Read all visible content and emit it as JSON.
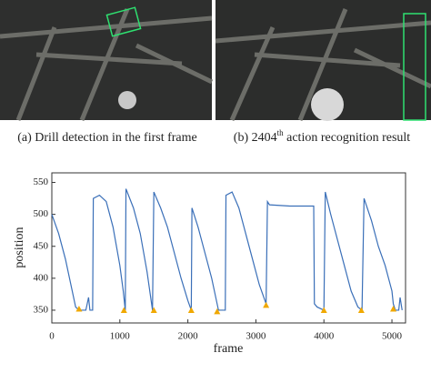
{
  "captions": {
    "a": "(a) Drill detection in the first frame",
    "b_prefix": "(b) 2404",
    "b_sup": "th",
    "b_rest": " action recognition result"
  },
  "chart_data": {
    "type": "line",
    "xlabel": "frame",
    "ylabel": "position",
    "xlim": [
      0,
      5200
    ],
    "ylim": [
      330,
      565
    ],
    "xticks": [
      0,
      1000,
      2000,
      3000,
      4000,
      5000
    ],
    "yticks": [
      350,
      400,
      450,
      500,
      550
    ],
    "series": [
      {
        "color": "#3a6fb8",
        "x": [
          0,
          100,
          200,
          300,
          350,
          400,
          450,
          500,
          540,
          560,
          600,
          610,
          700,
          800,
          900,
          1000,
          1050,
          1080,
          1090,
          1200,
          1300,
          1400,
          1480,
          1500,
          1600,
          1700,
          1800,
          1900,
          2000,
          2050,
          2060,
          2150,
          2250,
          2350,
          2450,
          2550,
          2560,
          2650,
          2750,
          2850,
          2950,
          3050,
          3150,
          3170,
          3200,
          3500,
          3800,
          3850,
          3860,
          3900,
          4000,
          4020,
          4100,
          4200,
          4300,
          4400,
          4500,
          4560,
          4590,
          4700,
          4800,
          4900,
          4950,
          5000,
          5020,
          5050,
          5100,
          5120,
          5150
        ],
        "values": [
          500,
          470,
          430,
          380,
          355,
          350,
          350,
          350,
          370,
          350,
          350,
          525,
          530,
          520,
          480,
          420,
          380,
          350,
          540,
          510,
          470,
          410,
          350,
          535,
          510,
          480,
          440,
          400,
          365,
          350,
          510,
          480,
          440,
          400,
          350,
          350,
          530,
          535,
          510,
          470,
          430,
          390,
          360,
          520,
          515,
          513,
          513,
          513,
          360,
          355,
          350,
          535,
          500,
          460,
          420,
          380,
          355,
          350,
          525,
          490,
          450,
          420,
          400,
          380,
          360,
          350,
          350,
          370,
          350
        ]
      }
    ],
    "markers": {
      "color": "#f0a800",
      "x": [
        400,
        1060,
        1500,
        2050,
        2430,
        3150,
        4000,
        4550,
        5020
      ],
      "values": [
        352,
        350,
        350,
        350,
        348,
        358,
        350,
        350,
        352
      ]
    }
  }
}
